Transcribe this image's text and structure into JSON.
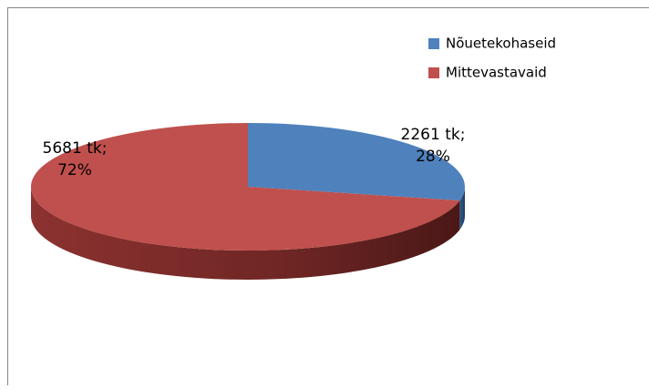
{
  "chart_data": {
    "type": "pie3d",
    "categories": [
      "Nõuetekohaseid",
      "Mittevastavaid"
    ],
    "values": [
      2261,
      5681
    ],
    "value_labels": [
      [
        "2261 tk;",
        "28%"
      ],
      [
        "5681 tk;",
        "72%"
      ]
    ],
    "colors": [
      "#4f81bd",
      "#c0504d"
    ],
    "legend": "top-right"
  }
}
